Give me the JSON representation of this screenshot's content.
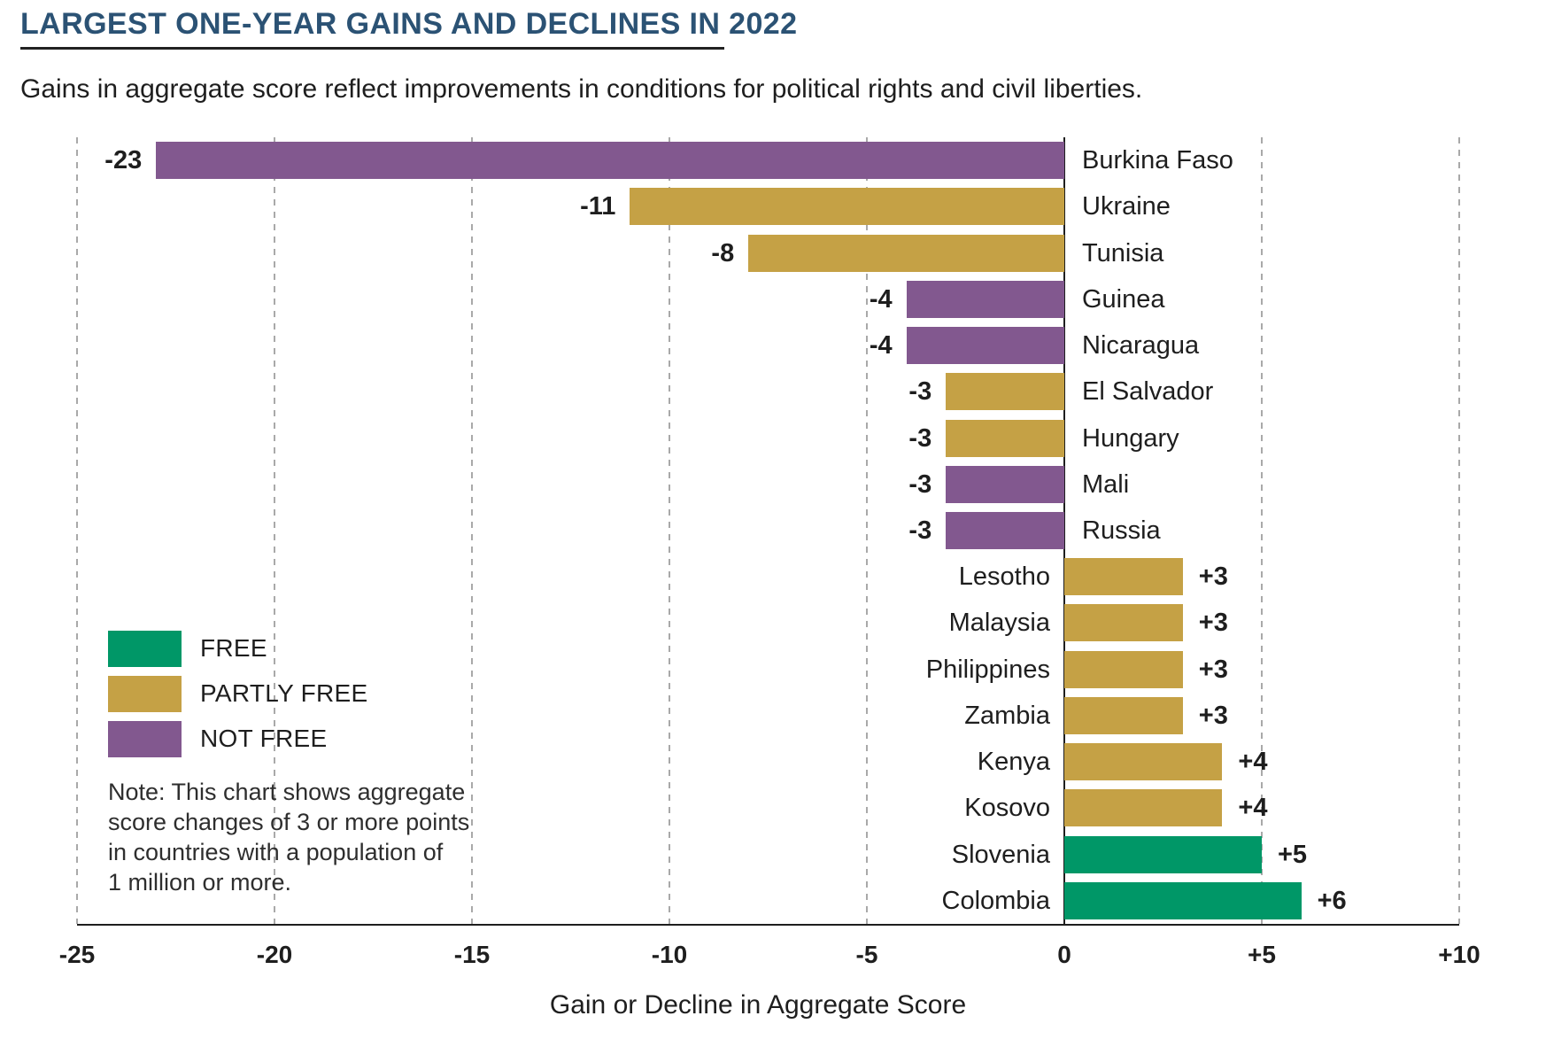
{
  "header": {
    "title": "LARGEST ONE-YEAR GAINS AND DECLINES IN 2022",
    "subtitle": "Gains in aggregate score reflect improvements in conditions for political rights and civil liberties."
  },
  "chart_data": {
    "type": "bar",
    "orientation": "horizontal",
    "title": "Largest One-Year Gains and Declines in 2022",
    "xlabel": "Gain or Decline in Aggregate Score",
    "ylabel": "",
    "xlim": [
      -25,
      10
    ],
    "grid": "dashed vertical gridlines at each tick, solid line at 0",
    "legend_position": "lower left",
    "x_ticks": [
      {
        "value": -25,
        "label": "-25"
      },
      {
        "value": -20,
        "label": "-20"
      },
      {
        "value": -15,
        "label": "-15"
      },
      {
        "value": -10,
        "label": "-10"
      },
      {
        "value": -5,
        "label": "-5"
      },
      {
        "value": 0,
        "label": "0"
      },
      {
        "value": 5,
        "label": "+5"
      },
      {
        "value": 10,
        "label": "+10"
      }
    ],
    "rows": [
      {
        "country": "Burkina Faso",
        "value": -23,
        "label": "-23",
        "status": "NOT FREE"
      },
      {
        "country": "Ukraine",
        "value": -11,
        "label": "-11",
        "status": "PARTLY FREE"
      },
      {
        "country": "Tunisia",
        "value": -8,
        "label": "-8",
        "status": "PARTLY FREE"
      },
      {
        "country": "Guinea",
        "value": -4,
        "label": "-4",
        "status": "NOT FREE"
      },
      {
        "country": "Nicaragua",
        "value": -4,
        "label": "-4",
        "status": "NOT FREE"
      },
      {
        "country": "El Salvador",
        "value": -3,
        "label": "-3",
        "status": "PARTLY FREE"
      },
      {
        "country": "Hungary",
        "value": -3,
        "label": "-3",
        "status": "PARTLY FREE"
      },
      {
        "country": "Mali",
        "value": -3,
        "label": "-3",
        "status": "NOT FREE"
      },
      {
        "country": "Russia",
        "value": -3,
        "label": "-3",
        "status": "NOT FREE"
      },
      {
        "country": "Lesotho",
        "value": 3,
        "label": "+3",
        "status": "PARTLY FREE"
      },
      {
        "country": "Malaysia",
        "value": 3,
        "label": "+3",
        "status": "PARTLY FREE"
      },
      {
        "country": "Philippines",
        "value": 3,
        "label": "+3",
        "status": "PARTLY FREE"
      },
      {
        "country": "Zambia",
        "value": 3,
        "label": "+3",
        "status": "PARTLY FREE"
      },
      {
        "country": "Kenya",
        "value": 4,
        "label": "+4",
        "status": "PARTLY FREE"
      },
      {
        "country": "Kosovo",
        "value": 4,
        "label": "+4",
        "status": "PARTLY FREE"
      },
      {
        "country": "Slovenia",
        "value": 5,
        "label": "+5",
        "status": "FREE"
      },
      {
        "country": "Colombia",
        "value": 6,
        "label": "+6",
        "status": "FREE"
      }
    ],
    "status_colors": {
      "FREE": "#009767",
      "PARTLY FREE": "#c5a145",
      "NOT FREE": "#82588f"
    }
  },
  "legend": {
    "items": [
      {
        "label": "FREE",
        "color": "#009767"
      },
      {
        "label": "PARTLY FREE",
        "color": "#c5a145"
      },
      {
        "label": "NOT FREE",
        "color": "#82588f"
      }
    ],
    "note_lines": [
      "Note: This chart shows aggregate",
      "score changes of 3 or more points",
      "in countries with a population of",
      "1 million or more."
    ]
  },
  "colors": {
    "title": "#2b5274",
    "text": "#1e1e1e",
    "gridline": "#a9a9a9",
    "axis": "#1e1e1e",
    "rule": "#222222"
  }
}
